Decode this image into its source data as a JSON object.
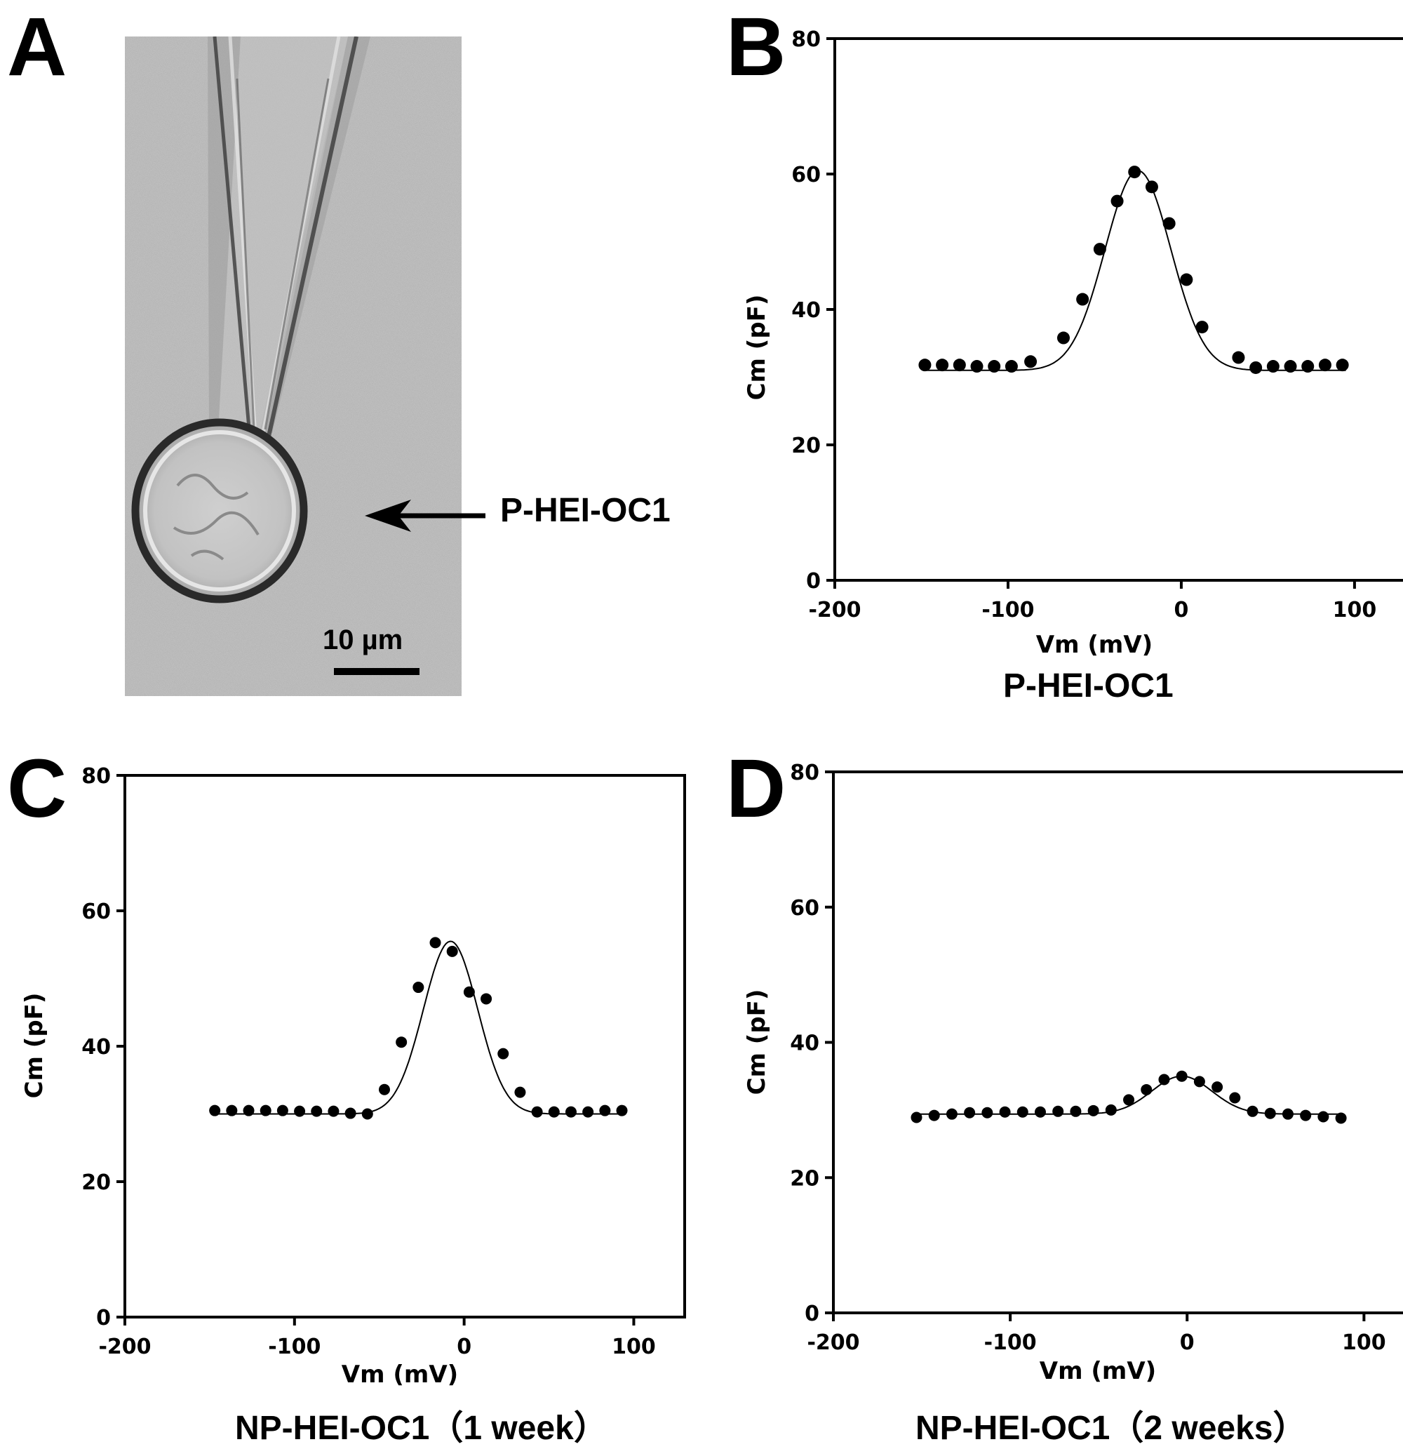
{
  "panels": {
    "A": {
      "letter": "A",
      "arrow_label": "P-HEI-OC1",
      "scale_bar": "10 µm",
      "colors": {
        "background": "#b4b4b4",
        "cell_outline": "#2a2a2a"
      }
    },
    "B": {
      "letter": "B",
      "caption": "P-HEI-OC1"
    },
    "C": {
      "letter": "C",
      "caption": "NP-HEI-OC1（1 week）"
    },
    "D": {
      "letter": "D",
      "caption": "NP-HEI-OC1（2 weeks）"
    }
  },
  "chart_data": [
    {
      "panel": "B",
      "type": "scatter",
      "xlabel": "Vm (mV)",
      "ylabel": "Cm (pF)",
      "xlim": [
        -200,
        130
      ],
      "ylim": [
        0,
        80
      ],
      "xticks": [
        -200,
        -100,
        0,
        100
      ],
      "yticks": [
        0,
        20,
        40,
        60,
        80
      ],
      "grid": false,
      "marker_color": "#000000",
      "points": {
        "x": [
          -148,
          -138,
          -128,
          -118,
          -108,
          -98,
          -87,
          -68,
          -57,
          -47,
          -37,
          -27,
          -17,
          -7,
          3,
          12,
          33,
          43,
          53,
          63,
          73,
          83,
          93
        ],
        "y": [
          31.8,
          31.8,
          31.8,
          31.6,
          31.6,
          31.6,
          32.3,
          35.8,
          41.5,
          48.9,
          56,
          60.3,
          58.1,
          52.7,
          44.4,
          37.4,
          32.9,
          31.4,
          31.6,
          31.6,
          31.6,
          31.8,
          31.8
        ]
      },
      "fit": {
        "baseline": 31.0,
        "peak": 60.5,
        "center": -25,
        "sigma": 19,
        "x_range": [
          -148,
          95
        ]
      }
    },
    {
      "panel": "C",
      "type": "scatter",
      "xlabel": "Vm (mV)",
      "ylabel": "Cm (pF)",
      "xlim": [
        -200,
        130
      ],
      "ylim": [
        0,
        80
      ],
      "xticks": [
        -200,
        -100,
        0,
        100
      ],
      "yticks": [
        0,
        20,
        40,
        60,
        80
      ],
      "grid": false,
      "marker_color": "#000000",
      "points": {
        "x": [
          -147,
          -137,
          -127,
          -117,
          -107,
          -97,
          -87,
          -77,
          -67,
          -57,
          -47,
          -37,
          -27,
          -17,
          -7,
          3,
          13,
          23,
          33,
          43,
          53,
          63,
          73,
          83,
          93
        ],
        "y": [
          30.5,
          30.5,
          30.5,
          30.5,
          30.5,
          30.4,
          30.4,
          30.4,
          30.1,
          30.0,
          33.6,
          40.6,
          48.7,
          55.3,
          54.0,
          48.0,
          47.0,
          38.9,
          33.2,
          30.3,
          30.3,
          30.3,
          30.3,
          30.5,
          30.5
        ]
      },
      "fit": {
        "baseline": 30.0,
        "peak": 55.5,
        "center": -8,
        "sigma": 16,
        "x_range": [
          -148,
          95
        ]
      }
    },
    {
      "panel": "D",
      "type": "scatter",
      "xlabel": "Vm (mV)",
      "ylabel": "Cm (pF)",
      "xlim": [
        -200,
        130
      ],
      "ylim": [
        0,
        80
      ],
      "xticks": [
        -200,
        -100,
        0,
        100
      ],
      "yticks": [
        0,
        20,
        40,
        60,
        80
      ],
      "grid": false,
      "marker_color": "#000000",
      "points": {
        "x": [
          -153,
          -143,
          -133,
          -123,
          -113,
          -103,
          -93,
          -83,
          -73,
          -63,
          -53,
          -43,
          -33,
          -23,
          -13,
          -3,
          7,
          17,
          27,
          37,
          47,
          57,
          67,
          77,
          87
        ],
        "y": [
          28.9,
          29.2,
          29.4,
          29.6,
          29.6,
          29.7,
          29.7,
          29.7,
          29.8,
          29.8,
          29.9,
          30.0,
          31.5,
          33.0,
          34.5,
          35.0,
          34.2,
          33.4,
          31.8,
          29.8,
          29.5,
          29.4,
          29.2,
          29.0,
          28.8
        ]
      },
      "fit": {
        "baseline": 29.4,
        "peak": 35.0,
        "center": -3,
        "sigma": 17,
        "x_range": [
          -153,
          88
        ]
      }
    }
  ]
}
